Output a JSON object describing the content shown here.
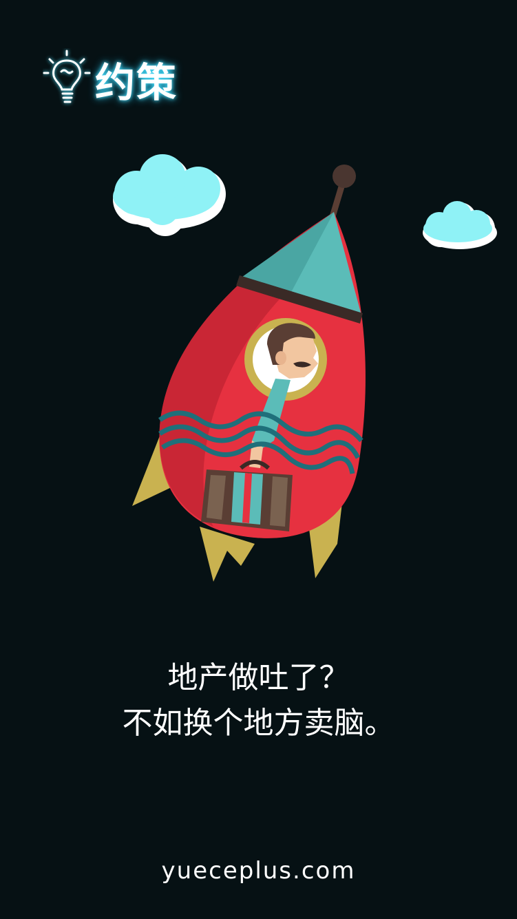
{
  "brand": {
    "name": "约策",
    "icon": "lightbulb-icon",
    "glow_color": "#4fe3ff"
  },
  "illustration": {
    "subject": "rocket-with-businessman",
    "colors": {
      "rocket_body": "#e63140",
      "rocket_nose": "#5bbcb8",
      "fins": "#c9b250",
      "cloud": "#8ff2f6",
      "waves": "#1f6f7a"
    }
  },
  "tagline": {
    "line1": "地产做吐了？",
    "line2": "不如换个地方卖脑。"
  },
  "footer": {
    "website": "yueceplus.com"
  }
}
